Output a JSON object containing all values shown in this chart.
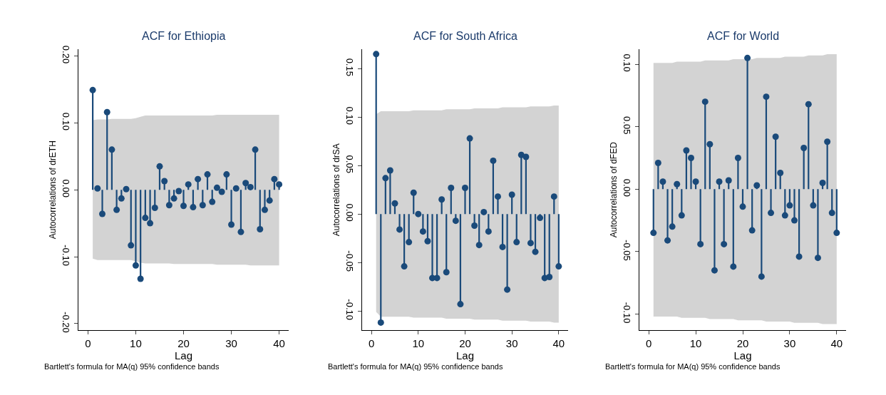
{
  "chart_data": [
    {
      "type": "lollipop",
      "title": "ACF for Ethiopia",
      "xlabel": "Lag",
      "ylabel": "Autocorrelations of drETH",
      "marker": "circle",
      "x": [
        1,
        2,
        3,
        4,
        5,
        6,
        7,
        8,
        9,
        10,
        11,
        12,
        13,
        14,
        15,
        16,
        17,
        18,
        19,
        20,
        21,
        22,
        23,
        24,
        25,
        26,
        27,
        28,
        29,
        30,
        31,
        32,
        33,
        34,
        35,
        36,
        37,
        38,
        39,
        40
      ],
      "xlim": [
        -2,
        42
      ],
      "xticks": [
        0,
        10,
        20,
        30,
        40
      ],
      "ylim": [
        -0.21,
        0.21
      ],
      "yticks": [
        {
          "value": 0.2,
          "label": "0.20"
        },
        {
          "value": 0.1,
          "label": "0.10"
        },
        {
          "value": 0,
          "label": "0.00"
        },
        {
          "value": -0.1,
          "label": "-0.10"
        },
        {
          "value": -0.2,
          "label": "-0.20"
        }
      ],
      "annotations": [
        "Bartlett's formula for MA(q) 95% confidence bands"
      ],
      "series": [
        {
          "color": "#1a4a7a",
          "values": [
            0.149,
            0.002,
            -0.036,
            0.116,
            0.06,
            -0.03,
            -0.013,
            0.001,
            -0.083,
            -0.113,
            -0.133,
            -0.042,
            -0.05,
            -0.027,
            0.035,
            0.013,
            -0.023,
            -0.013,
            -0.002,
            -0.024,
            0.008,
            -0.026,
            0.016,
            -0.023,
            0.023,
            -0.018,
            0.003,
            -0.003,
            0.023,
            -0.052,
            0.002,
            -0.063,
            0.01,
            0.004,
            0.06,
            -0.059,
            -0.03,
            -0.016,
            0.016,
            0.008
          ],
          "upper": [
            0.104,
            0.105,
            0.105,
            0.105,
            0.106,
            0.106,
            0.106,
            0.106,
            0.106,
            0.107,
            0.109,
            0.111,
            0.111,
            0.111,
            0.111,
            0.111,
            0.111,
            0.111,
            0.111,
            0.111,
            0.111,
            0.111,
            0.111,
            0.111,
            0.111,
            0.111,
            0.112,
            0.112,
            0.112,
            0.112,
            0.112,
            0.112,
            0.112,
            0.112,
            0.112,
            0.112,
            0.112,
            0.112,
            0.112,
            0.112
          ],
          "lower": [
            -0.103,
            -0.105,
            -0.105,
            -0.105,
            -0.105,
            -0.105,
            -0.105,
            -0.105,
            -0.105,
            -0.107,
            -0.109,
            -0.11,
            -0.11,
            -0.11,
            -0.11,
            -0.11,
            -0.11,
            -0.111,
            -0.111,
            -0.111,
            -0.111,
            -0.111,
            -0.111,
            -0.111,
            -0.111,
            -0.111,
            -0.112,
            -0.112,
            -0.112,
            -0.112,
            -0.112,
            -0.112,
            -0.112,
            -0.113,
            -0.113,
            -0.113,
            -0.113,
            -0.113,
            -0.113,
            -0.113
          ]
        }
      ]
    },
    {
      "type": "lollipop",
      "title": "ACF for South Africa",
      "xlabel": "Lag",
      "ylabel": "Autocorrelations of drSA",
      "marker": "circle",
      "x": [
        1,
        2,
        3,
        4,
        5,
        6,
        7,
        8,
        9,
        10,
        11,
        12,
        13,
        14,
        15,
        16,
        17,
        18,
        19,
        20,
        21,
        22,
        23,
        24,
        25,
        26,
        27,
        28,
        29,
        30,
        31,
        32,
        33,
        34,
        35,
        36,
        37,
        38,
        39,
        40
      ],
      "xlim": [
        -2,
        42
      ],
      "xticks": [
        0,
        10,
        20,
        30,
        40
      ],
      "ylim": [
        -0.12,
        0.17
      ],
      "yticks": [
        {
          "value": 0.15,
          "label": "0.15"
        },
        {
          "value": 0.1,
          "label": "0.10"
        },
        {
          "value": 0.05,
          "label": "0.05"
        },
        {
          "value": 0,
          "label": "0.00"
        },
        {
          "value": -0.05,
          "label": "-0.05"
        },
        {
          "value": -0.1,
          "label": "-0.10"
        }
      ],
      "annotations": [
        "Bartlett's formula for MA(q) 95% confidence bands"
      ],
      "series": [
        {
          "color": "#1a4a7a",
          "values": [
            0.165,
            -0.112,
            0.037,
            0.045,
            0.011,
            -0.016,
            -0.054,
            -0.029,
            0.022,
            0.0,
            -0.018,
            -0.028,
            -0.066,
            -0.066,
            0.015,
            -0.06,
            0.027,
            -0.007,
            -0.093,
            0.027,
            0.078,
            -0.012,
            -0.032,
            0.002,
            -0.018,
            0.055,
            0.018,
            -0.034,
            -0.078,
            0.02,
            -0.029,
            0.061,
            0.059,
            -0.03,
            -0.039,
            -0.004,
            -0.066,
            -0.065,
            0.018,
            -0.054
          ],
          "upper": [
            0.103,
            0.106,
            0.106,
            0.106,
            0.106,
            0.106,
            0.106,
            0.106,
            0.107,
            0.107,
            0.107,
            0.107,
            0.107,
            0.107,
            0.107,
            0.108,
            0.108,
            0.108,
            0.108,
            0.108,
            0.108,
            0.109,
            0.109,
            0.109,
            0.109,
            0.109,
            0.109,
            0.11,
            0.11,
            0.11,
            0.11,
            0.11,
            0.11,
            0.111,
            0.111,
            0.111,
            0.111,
            0.111,
            0.112,
            0.112
          ],
          "lower": [
            -0.101,
            -0.106,
            -0.106,
            -0.106,
            -0.106,
            -0.106,
            -0.106,
            -0.106,
            -0.107,
            -0.107,
            -0.107,
            -0.107,
            -0.107,
            -0.107,
            -0.107,
            -0.108,
            -0.108,
            -0.108,
            -0.108,
            -0.108,
            -0.108,
            -0.109,
            -0.109,
            -0.109,
            -0.109,
            -0.109,
            -0.109,
            -0.11,
            -0.11,
            -0.11,
            -0.11,
            -0.11,
            -0.11,
            -0.111,
            -0.111,
            -0.111,
            -0.111,
            -0.111,
            -0.112,
            -0.112
          ]
        }
      ]
    },
    {
      "type": "lollipop",
      "title": "ACF for World",
      "xlabel": "Lag",
      "ylabel": "Autocorrelations of dFED",
      "marker": "circle",
      "x": [
        1,
        2,
        3,
        4,
        5,
        6,
        7,
        8,
        9,
        10,
        11,
        12,
        13,
        14,
        15,
        16,
        17,
        18,
        19,
        20,
        21,
        22,
        23,
        24,
        25,
        26,
        27,
        28,
        29,
        30,
        31,
        32,
        33,
        34,
        35,
        36,
        37,
        38,
        39,
        40
      ],
      "xlim": [
        -2,
        42
      ],
      "xticks": [
        0,
        10,
        20,
        30,
        40
      ],
      "ylim": [
        -0.113,
        0.112
      ],
      "yticks": [
        {
          "value": 0.1,
          "label": "0.10"
        },
        {
          "value": 0.05,
          "label": "0.05"
        },
        {
          "value": 0,
          "label": "0.00"
        },
        {
          "value": -0.05,
          "label": "-0.05"
        },
        {
          "value": -0.1,
          "label": "-0.10"
        }
      ],
      "annotations": [
        "Bartlett's formula for MA(q) 95% confidence bands"
      ],
      "series": [
        {
          "color": "#1a4a7a",
          "values": [
            -0.035,
            0.021,
            0.006,
            -0.041,
            -0.03,
            0.004,
            -0.021,
            0.031,
            0.025,
            0.006,
            -0.044,
            0.07,
            0.036,
            -0.065,
            0.006,
            -0.044,
            0.007,
            -0.062,
            0.025,
            -0.014,
            0.105,
            -0.033,
            0.003,
            -0.07,
            0.074,
            -0.019,
            0.042,
            0.013,
            -0.021,
            -0.013,
            -0.025,
            -0.054,
            0.033,
            0.068,
            -0.013,
            -0.055,
            0.005,
            0.038,
            -0.019,
            -0.035
          ],
          "upper": [
            0.101,
            0.101,
            0.101,
            0.101,
            0.101,
            0.102,
            0.102,
            0.102,
            0.102,
            0.102,
            0.102,
            0.103,
            0.103,
            0.103,
            0.103,
            0.103,
            0.103,
            0.104,
            0.104,
            0.104,
            0.104,
            0.104,
            0.105,
            0.105,
            0.105,
            0.105,
            0.105,
            0.105,
            0.106,
            0.106,
            0.106,
            0.106,
            0.106,
            0.107,
            0.107,
            0.107,
            0.107,
            0.108,
            0.108,
            0.108
          ],
          "lower": [
            -0.102,
            -0.102,
            -0.102,
            -0.102,
            -0.102,
            -0.102,
            -0.103,
            -0.103,
            -0.103,
            -0.103,
            -0.103,
            -0.103,
            -0.104,
            -0.104,
            -0.104,
            -0.104,
            -0.104,
            -0.104,
            -0.105,
            -0.105,
            -0.105,
            -0.105,
            -0.105,
            -0.105,
            -0.106,
            -0.106,
            -0.106,
            -0.106,
            -0.106,
            -0.106,
            -0.107,
            -0.107,
            -0.107,
            -0.107,
            -0.107,
            -0.107,
            -0.108,
            -0.108,
            -0.108,
            -0.108
          ]
        }
      ]
    }
  ]
}
